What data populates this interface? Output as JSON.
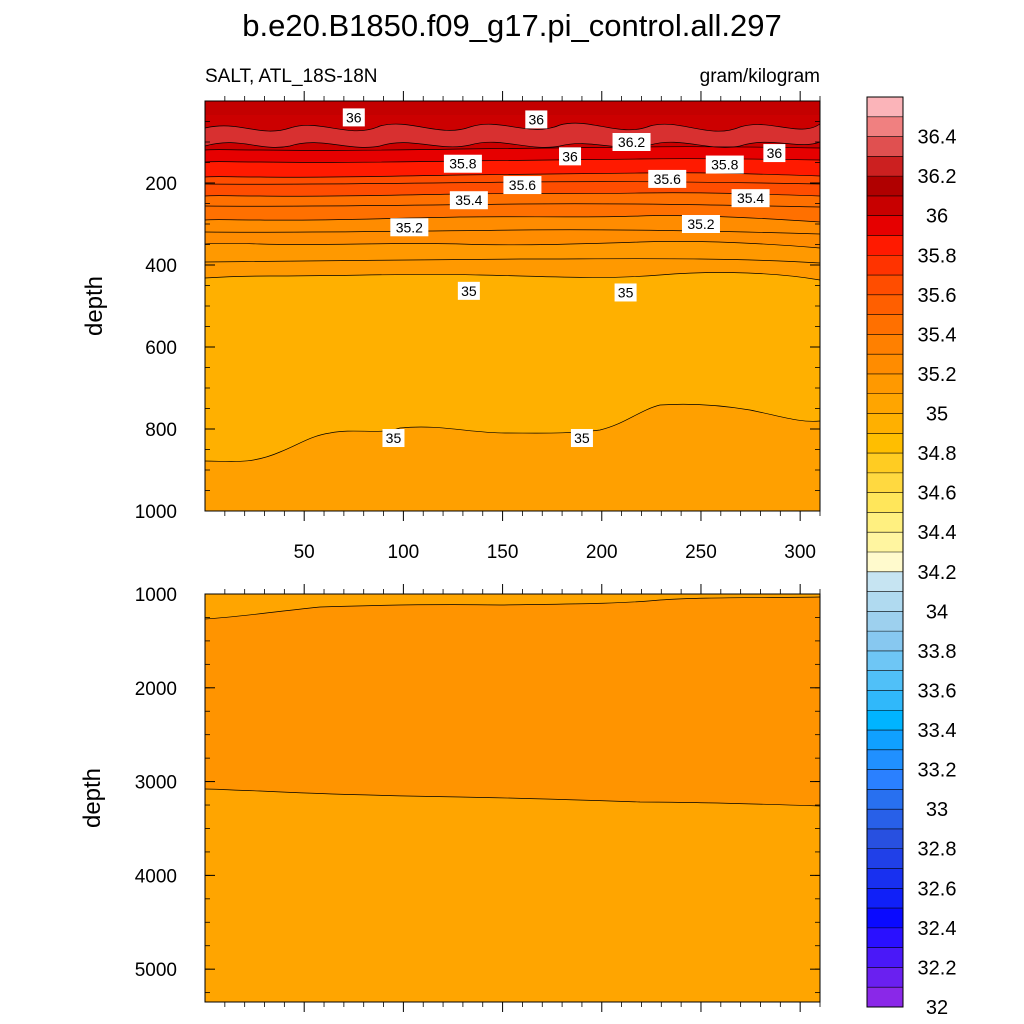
{
  "chart_data": {
    "title": "b.e20.B1850.f09_g17.pi_control.all.297",
    "type": "contour",
    "variable_label": "SALT, ATL_18S-18N",
    "units_label": "gram/kilogram",
    "ylabel": "depth",
    "x_range": [
      0,
      310
    ],
    "x_ticks": [
      50,
      100,
      150,
      200,
      250,
      300
    ],
    "panels": [
      {
        "name": "upper",
        "ylim": [
          0,
          1000
        ],
        "y_ticks": [
          200,
          400,
          600,
          800,
          1000
        ],
        "contour_labels": [
          {
            "text": "36",
            "x": 75,
            "y": 40
          },
          {
            "text": "36",
            "x": 167,
            "y": 45
          },
          {
            "text": "36.2",
            "x": 215,
            "y": 100
          },
          {
            "text": "36",
            "x": 184,
            "y": 135
          },
          {
            "text": "35.8",
            "x": 130,
            "y": 153
          },
          {
            "text": "35.8",
            "x": 262,
            "y": 155
          },
          {
            "text": "36",
            "x": 287,
            "y": 127
          },
          {
            "text": "35.6",
            "x": 160,
            "y": 205
          },
          {
            "text": "35.6",
            "x": 233,
            "y": 190
          },
          {
            "text": "35.4",
            "x": 133,
            "y": 242
          },
          {
            "text": "35.4",
            "x": 275,
            "y": 237
          },
          {
            "text": "35.2",
            "x": 103,
            "y": 308
          },
          {
            "text": "35.2",
            "x": 250,
            "y": 300
          },
          {
            "text": "35",
            "x": 133,
            "y": 463
          },
          {
            "text": "35",
            "x": 212,
            "y": 467
          },
          {
            "text": "35",
            "x": 95,
            "y": 822
          },
          {
            "text": "35",
            "x": 190,
            "y": 822
          }
        ]
      },
      {
        "name": "lower",
        "ylim": [
          1000,
          5350
        ],
        "y_ticks": [
          1000,
          2000,
          3000,
          4000,
          5000
        ],
        "contour_labels": []
      }
    ],
    "colorbar": {
      "labels": [
        "36.4",
        "36.2",
        "36",
        "35.8",
        "35.6",
        "35.4",
        "35.2",
        "35",
        "34.8",
        "34.6",
        "34.4",
        "34.2",
        "34",
        "33.8",
        "33.6",
        "33.4",
        "33.2",
        "33",
        "32.8",
        "32.6",
        "32.4",
        "32.2",
        "32"
      ],
      "colors_top_to_bottom": [
        "#fbb4b9",
        "#f08080",
        "#e05050",
        "#cc2020",
        "#b00000",
        "#c80000",
        "#e60000",
        "#ff1a00",
        "#ff3300",
        "#ff4d00",
        "#ff5f00",
        "#ff7000",
        "#ff8000",
        "#ff8c00",
        "#ff9900",
        "#ffa500",
        "#ffb000",
        "#ffbe00",
        "#ffcc22",
        "#ffd940",
        "#ffe65a",
        "#fff080",
        "#fff5a0",
        "#fffacd",
        "#c6e4f2",
        "#b0daf0",
        "#9dd0ee",
        "#87c8f0",
        "#6ec6f5",
        "#50c0f8",
        "#30b8fa",
        "#00b4ff",
        "#10a0ff",
        "#2090ff",
        "#2a80ff",
        "#2870f0",
        "#2860e8",
        "#2850e0",
        "#2040e8",
        "#1830f0",
        "#1020f8",
        "#0a0aff",
        "#2a10ff",
        "#4a18f8",
        "#6a20f0",
        "#8a28e8"
      ]
    }
  }
}
